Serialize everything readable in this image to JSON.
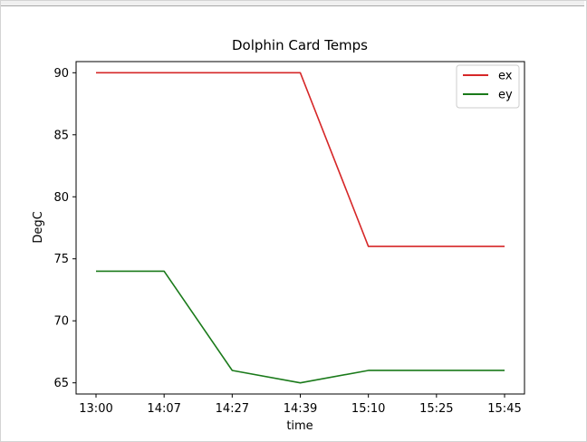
{
  "chart_data": {
    "type": "line",
    "title": "Dolphin Card Temps",
    "xlabel": "time",
    "ylabel": "DegC",
    "categories": [
      "13:00",
      "14:07",
      "14:27",
      "14:39",
      "15:10",
      "15:25",
      "15:45"
    ],
    "yticks": [
      65,
      70,
      75,
      80,
      85,
      90
    ],
    "ylim": [
      64.1,
      90.9
    ],
    "series": [
      {
        "name": "ex",
        "color": "#d62728",
        "values": [
          90,
          90,
          90,
          90,
          76,
          76,
          76
        ]
      },
      {
        "name": "ey",
        "color": "#1a7a1a",
        "values": [
          74,
          74,
          66,
          65,
          66,
          66,
          66
        ]
      }
    ],
    "legend": "top-right",
    "grid": false
  }
}
